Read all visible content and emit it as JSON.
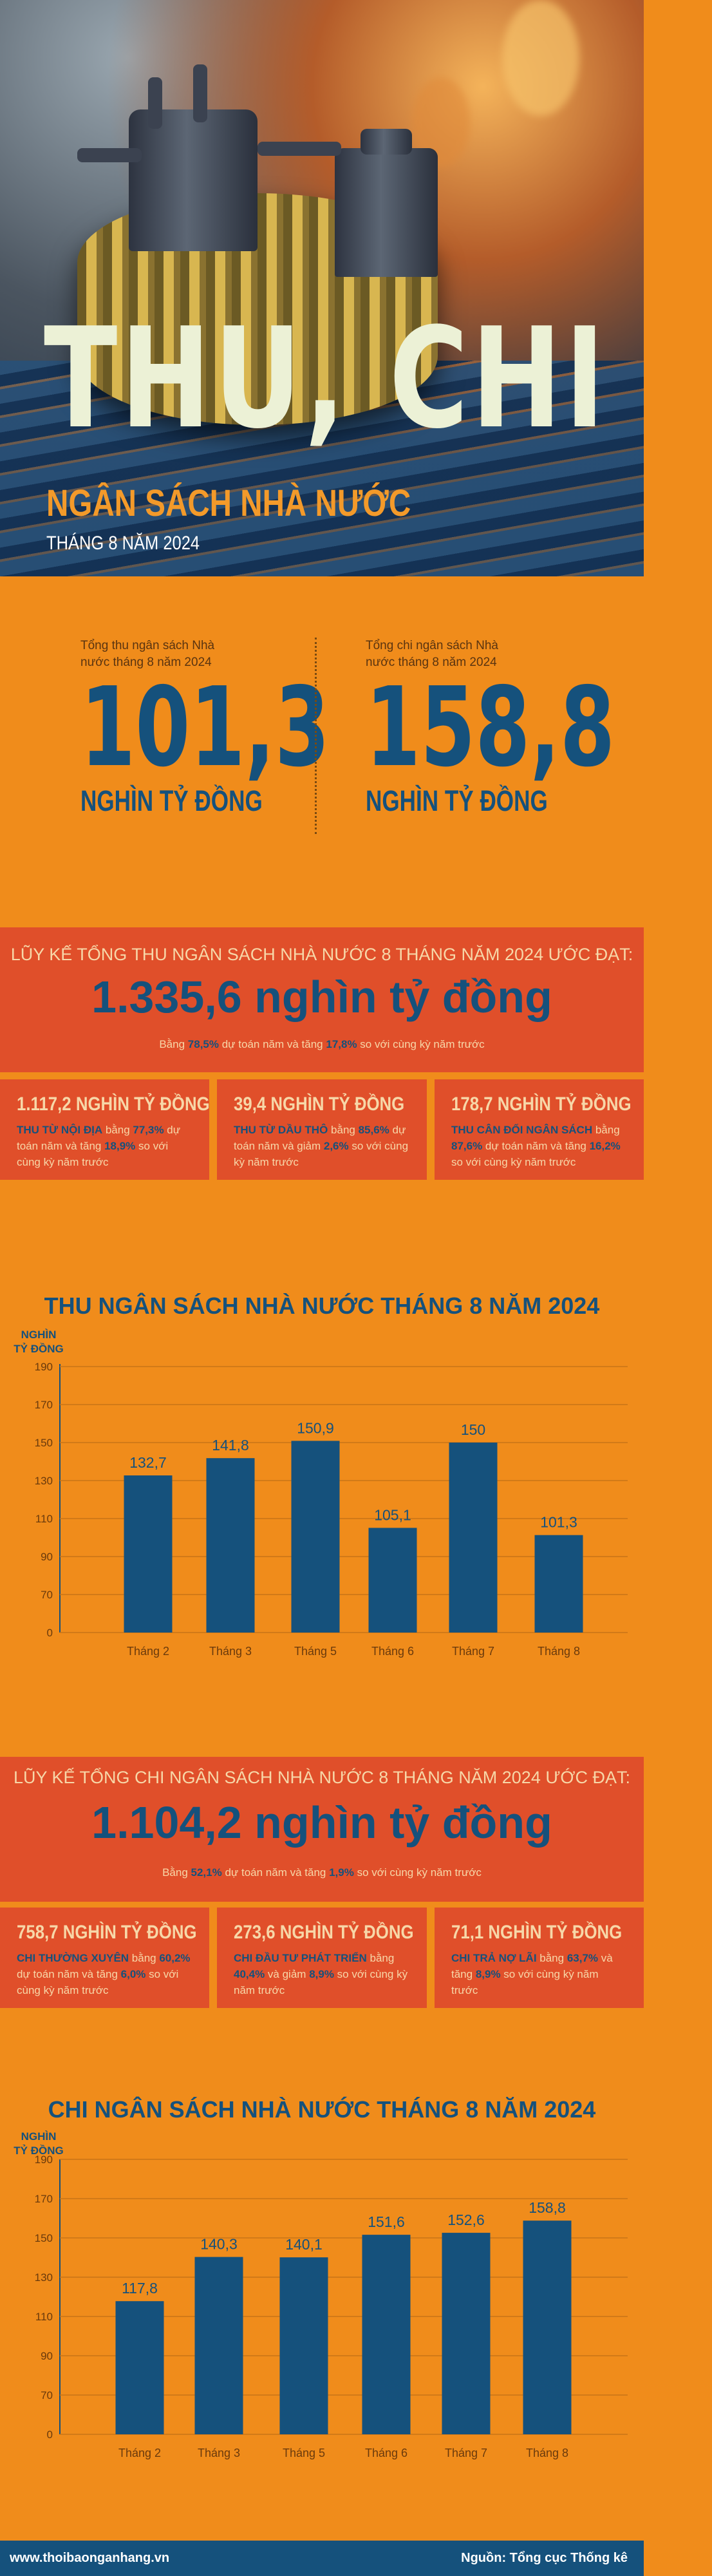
{
  "hero": {
    "title": "THU, CHI",
    "subtitle": "NGÂN SÁCH NHÀ NƯỚC",
    "date": "THÁNG 8 NĂM 2024"
  },
  "summary": {
    "revenue": {
      "label": "Tổng thu ngân sách Nhà nước tháng 8 năm 2024",
      "value": "101,3",
      "unit": "NGHÌN TỶ ĐỒNG"
    },
    "spending": {
      "label": "Tổng chi ngân sách Nhà nước tháng 8 năm 2024",
      "value": "158,8",
      "unit": "NGHÌN TỶ ĐỒNG"
    }
  },
  "revenue_total": {
    "heading": "LŨY KẾ TỔNG THU NGÂN SÁCH NHÀ NƯỚC 8 THÁNG NĂM 2024 ƯỚC ĐẠT:",
    "value": "1.335,6 nghìn tỷ đồng",
    "note_pre": "Bằng ",
    "note_pct1": "78,5%",
    "note_mid": " dự toán năm và tăng ",
    "note_pct2": "17,8%",
    "note_post": " so với cùng kỳ năm trước"
  },
  "revenue_cards": [
    {
      "value": "1.117,2 NGHÌN TỶ ĐỒNG",
      "lead": "THU TỪ NỘI ĐỊA",
      "pre": " bằng ",
      "pct1": "77,3%",
      "mid": " dự toán năm và tăng ",
      "pct2": "18,9%",
      "post": " so với cùng kỳ năm trước"
    },
    {
      "value": "39,4 NGHÌN TỶ ĐỒNG",
      "lead": "THU TỪ DẦU THÔ",
      "pre": " bằng ",
      "pct1": "85,6%",
      "mid": " dự toán năm và giảm ",
      "pct2": "2,6%",
      "post": " so với cùng kỳ năm trước"
    },
    {
      "value": "178,7 NGHÌN TỶ ĐỒNG",
      "lead": "THU CÂN ĐỐI NGÂN SÁCH",
      "pre": " bằng ",
      "pct1": "87,6%",
      "mid": " dự toán năm và tăng ",
      "pct2": "16,2%",
      "post": " so với cùng kỳ năm trước"
    }
  ],
  "spending_total": {
    "heading": "LŨY KẾ TỔNG CHI NGÂN SÁCH NHÀ NƯỚC 8 THÁNG NĂM 2024 ƯỚC ĐẠT:",
    "value": "1.104,2 nghìn tỷ đồng",
    "note_pre": "Bằng ",
    "note_pct1": "52,1%",
    "note_mid": " dự toán năm và tăng ",
    "note_pct2": "1,9%",
    "note_post": " so với cùng kỳ năm trước"
  },
  "spending_cards": [
    {
      "value": "758,7 NGHÌN TỶ ĐỒNG",
      "lead": "CHI THƯỜNG XUYÊN",
      "pre": " bằng ",
      "pct1": "60,2%",
      "mid": " dự toán năm và tăng ",
      "pct2": "6,0%",
      "post": " so với cùng kỳ năm trước"
    },
    {
      "value": "273,6 NGHÌN TỶ ĐỒNG",
      "lead": "CHI ĐẦU TƯ PHÁT TRIỂN",
      "pre": " bằng ",
      "pct1": "40,4%",
      "mid": " và giảm ",
      "pct2": "8,9%",
      "post": " so với cùng kỳ năm trước"
    },
    {
      "value": "71,1 NGHÌN TỶ ĐỒNG",
      "lead": "CHI TRẢ NỢ LÃI",
      "pre": " bằng ",
      "pct1": "63,7%",
      "mid": " và tăng ",
      "pct2": "8,9%",
      "post": " so với cùng kỳ năm trước"
    }
  ],
  "chart_data": [
    {
      "type": "bar",
      "title": "THU NGÂN SÁCH NHÀ NƯỚC THÁNG 8 NĂM 2024",
      "ylabel": "NGHÌN TỶ ĐỒNG",
      "categories": [
        "Tháng 2",
        "Tháng 3",
        "Tháng 5",
        "Tháng 6",
        "Tháng 7",
        "Tháng 8"
      ],
      "values": [
        132.7,
        141.8,
        150.9,
        105.1,
        150,
        101.3
      ],
      "value_labels": [
        "132,7",
        "141,8",
        "150,9",
        "105,1",
        "150",
        "101,3"
      ],
      "yticks": [
        0,
        70,
        90,
        110,
        130,
        150,
        170,
        190
      ],
      "grid": true,
      "bar_color": "#15517c"
    },
    {
      "type": "bar",
      "title": "CHI NGÂN SÁCH NHÀ NƯỚC THÁNG 8 NĂM 2024",
      "ylabel": "NGHÌN TỶ ĐỒNG",
      "categories": [
        "Tháng 2",
        "Tháng 3",
        "Tháng 5",
        "Tháng 6",
        "Tháng 7",
        "Tháng 8"
      ],
      "values": [
        117.8,
        140.3,
        140.1,
        151.6,
        152.6,
        158.8
      ],
      "value_labels": [
        "117,8",
        "140,3",
        "140,1",
        "151,6",
        "152,6",
        "158,8"
      ],
      "yticks": [
        0,
        70,
        90,
        110,
        130,
        150,
        170,
        190
      ],
      "grid": true,
      "bar_color": "#15517c"
    }
  ],
  "footer": {
    "website": "www.thoibaonganhang.vn",
    "source": "Nguồn: Tổng cục Thống kê"
  },
  "colors": {
    "orange": "#f08c1b",
    "red": "#e04f2a",
    "navy": "#15517c",
    "cream": "#f7d7a8"
  }
}
